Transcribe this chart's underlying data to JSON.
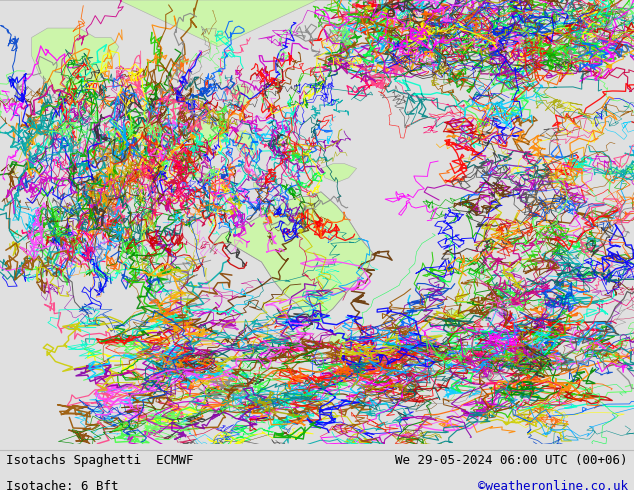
{
  "title_left": "Isotachs Spaghetti  ECMWF",
  "title_right": "We 29-05-2024 06:00 UTC (00+06)",
  "subtitle_left": "Isotache: 6 Bft",
  "subtitle_right": "©weatheronline.co.uk",
  "bg_color": "#e0e0e0",
  "map_bg": "#e8e8e8",
  "land_color": "#ccf5aa",
  "ocean_color": "#e8e8e8",
  "text_color": "#000000",
  "link_color": "#0000cc",
  "title_fontsize": 9,
  "subtitle_fontsize": 9,
  "fig_width": 6.34,
  "fig_height": 4.9,
  "dpi": 100,
  "lon_min": 60,
  "lon_max": 220,
  "lat_min": -65,
  "lat_max": 30
}
